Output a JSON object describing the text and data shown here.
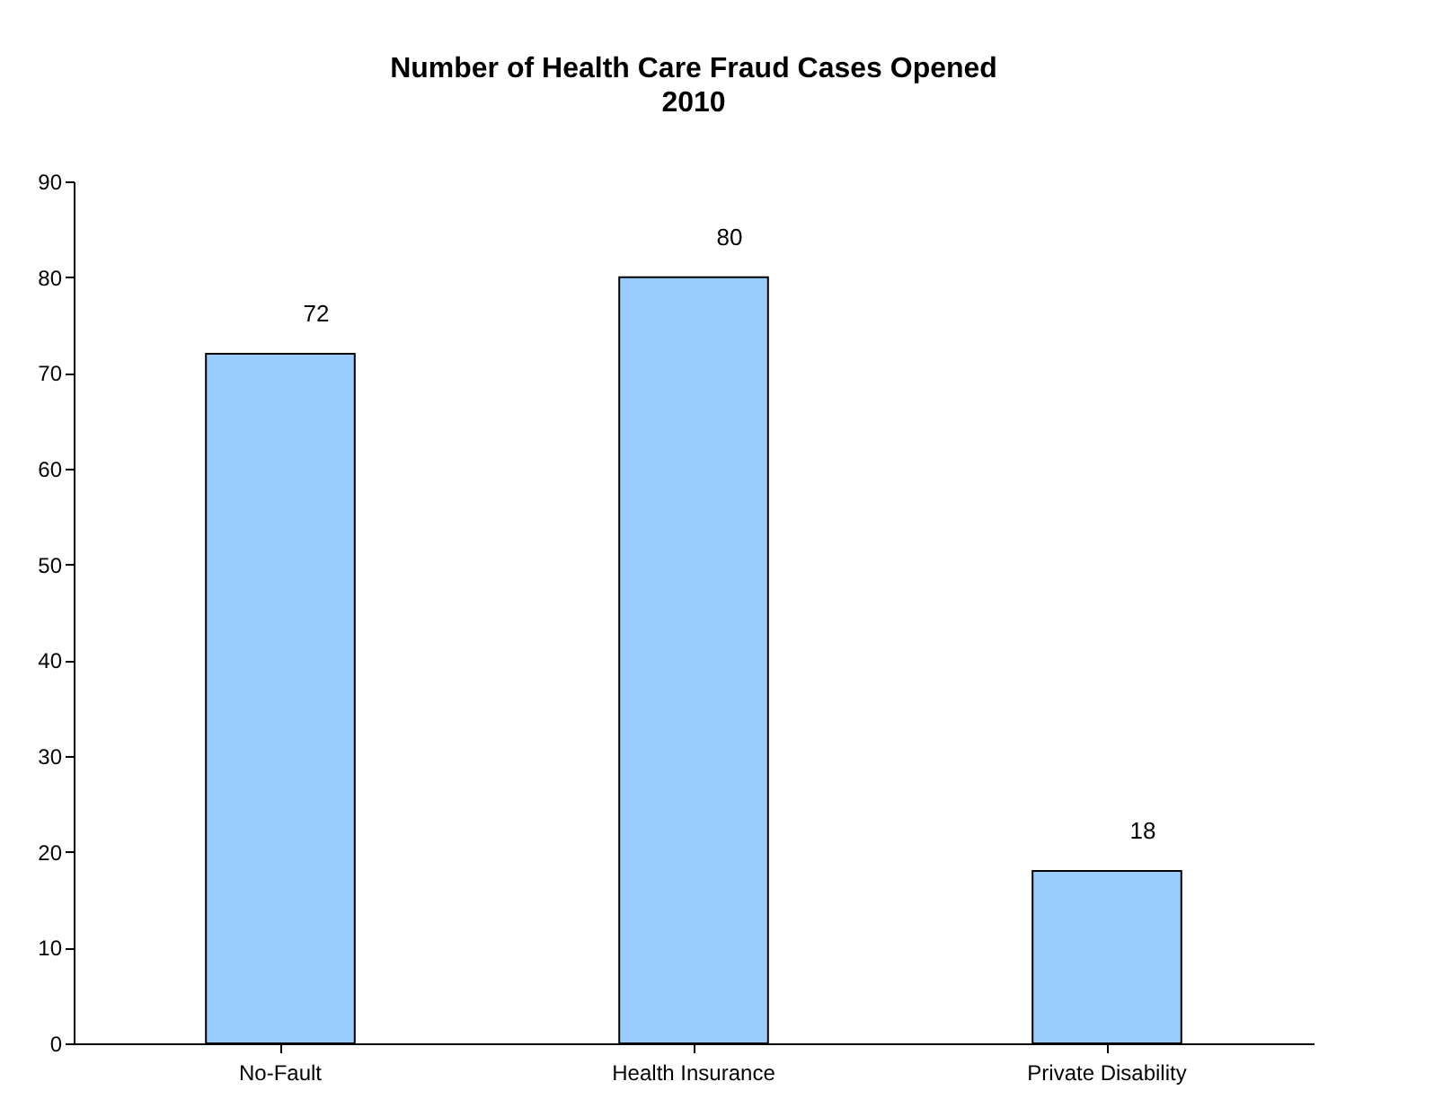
{
  "chart_data": {
    "type": "bar",
    "title": "Number of Health Care Fraud Cases Opened",
    "subtitle": "2010",
    "categories": [
      "No-Fault",
      "Health Insurance",
      "Private Disability"
    ],
    "values": [
      72,
      80,
      18
    ],
    "color": "#99ccff",
    "ylim": [
      0,
      90
    ],
    "yticks": [
      0,
      10,
      20,
      30,
      40,
      50,
      60,
      70,
      80,
      90
    ],
    "grid": false,
    "data_labels": true
  }
}
